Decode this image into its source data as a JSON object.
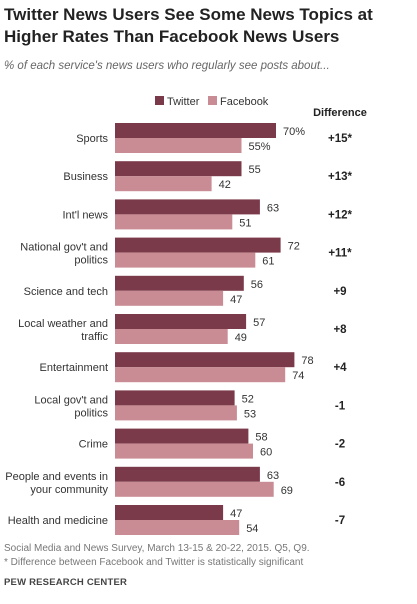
{
  "title": "Twitter News Users See Some News Topics at Higher Rates Than Facebook News Users",
  "subtitle": "% of each service's news users who regularly see posts about...",
  "difference_header": "Difference",
  "footnote_survey": "Social Media and News Survey, March 13-15 & 20-22, 2015. Q5, Q9.",
  "footnote_significance": "* Difference between Facebook and Twitter is statistically significant",
  "source": "PEW RESEARCH CENTER",
  "colors": {
    "twitter": "#7b3a4a",
    "facebook": "#c98b94"
  },
  "chart_data": {
    "type": "bar",
    "orientation": "horizontal",
    "xlim": [
      0,
      100
    ],
    "legend_position": "top",
    "categories": [
      [
        "Sports"
      ],
      [
        "Business"
      ],
      [
        "Int'l news"
      ],
      [
        "National gov't and",
        "politics"
      ],
      [
        "Science and tech"
      ],
      [
        "Local weather and",
        "traffic"
      ],
      [
        "Entertainment"
      ],
      [
        "Local gov't and",
        "politics"
      ],
      [
        "Crime"
      ],
      [
        "People and events in",
        "your community"
      ],
      [
        "Health and medicine"
      ]
    ],
    "series": [
      {
        "name": "Twitter",
        "values": [
          70,
          55,
          63,
          72,
          56,
          57,
          78,
          52,
          58,
          63,
          47
        ]
      },
      {
        "name": "Facebook",
        "values": [
          55,
          42,
          51,
          61,
          47,
          49,
          74,
          53,
          60,
          69,
          54
        ]
      }
    ],
    "value_labels": {
      "Twitter": [
        "70%",
        "55",
        "63",
        "72",
        "56",
        "57",
        "78",
        "52",
        "58",
        "63",
        "47"
      ],
      "Facebook": [
        "55%",
        "42",
        "51",
        "61",
        "47",
        "49",
        "74",
        "53",
        "60",
        "69",
        "54"
      ]
    },
    "differences": [
      "+15*",
      "+13*",
      "+12*",
      "+11*",
      "+9",
      "+8",
      "+4",
      "-1",
      "-2",
      "-6",
      "-7"
    ]
  }
}
